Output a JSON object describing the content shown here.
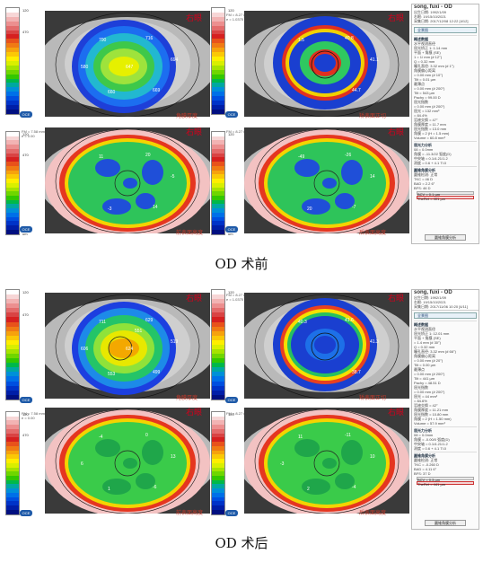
{
  "scale_values": [
    "120",
    "",
    "",
    "",
    "",
    "470",
    "",
    "",
    "",
    "",
    "",
    "",
    "",
    "",
    "",
    "",
    "",
    "",
    "",
    "",
    "",
    "",
    "",
    "",
    "um"
  ],
  "scale_values_mid": [
    "120",
    "",
    "",
    "",
    "",
    "",
    "",
    "",
    "",
    "",
    "",
    "",
    "",
    "",
    "",
    "",
    "",
    "",
    "",
    "",
    "",
    "",
    "",
    "",
    "um"
  ],
  "scale_header": [
    "FM = 7.58 mm (44.50D)",
    "e = 0.00"
  ],
  "scale_header_b": [
    "FM = 8.27 mm (40.80D)",
    "e = 1.0375"
  ],
  "before": {
    "maps": [
      {
        "eye": "右眼",
        "caption": "角膜厚度",
        "values": [
          "700",
          "716",
          "694",
          "669",
          "660",
          "580",
          "647"
        ]
      },
      {
        "eye": "右眼",
        "caption": "矫表面正切",
        "values": [
          "1.5",
          "40.8",
          "41.1",
          "44.7"
        ]
      },
      {
        "eye": "右眼",
        "caption": "前表面高度",
        "values": [
          "11",
          "20",
          "-5",
          "14",
          "-3"
        ]
      },
      {
        "eye": "右眼",
        "caption": "后表面高度",
        "values": [
          "-49",
          "-26",
          "14",
          "-7",
          "20"
        ]
      }
    ],
    "label": "OD 术前",
    "panel": {
      "name": "song, fuxi - OD",
      "lines": [
        "出生日期: 1992/1/09",
        "右眼: 19/15/10/2021",
        "采集日期: 2017/12/08 12:22 [4/12]"
      ],
      "tab": "全景图",
      "groups": [
        {
          "title": "概述数据",
          "rows": [
            "水平视测直径",
            "屈光矫正 1: 1.14 mm",
            "平面 + 角膜 (SE)",
            "1 = 1/ mm (# 12°)",
            "Q = 0.32 mm",
            "瞳孔直径: 3.32 mm (# 1°)",
            "角膜偏心距离",
            "= 0.00 mm (# 10°)",
            "Tilt = 0.01 µm",
            "最薄点",
            "= 0.00 mm (# 200°)",
            "Tilt = 543 µm",
            "Pachy = 99.00 D",
            "屈光指数",
            "= 0.00 mm (# 200°)",
            "屈光 = 132 mm³",
            "= 84.4%",
            "泪液交换 = 47°",
            "角膜厚度 = 11.7 mm",
            "屈光指数 = 13.0 mm",
            "角膜 = 2 (H = 1.5 mm)",
            "Volume = 60.8 mm³"
          ]
        },
        {
          "title": "屈光力分析",
          "rows": [
            "08 = 0.0mm",
            "角膜 = -11.3/22 弧度(D)",
            "中央轴 = 0.1/4.21/1.2",
            "测度 = 0.6 + 4.1 Tl.0"
          ]
        },
        {
          "title": "圆锥角膜分析",
          "rows": [
            "圆锥检测: 正常",
            "TKC = 46 D",
            "BAD = 2.2 6°",
            "BFS: 46 D"
          ]
        }
      ],
      "bars": [
        "BCV = 0.1 µm",
        "TheRet = 401 µm"
      ],
      "button": "圆锥角膜分析"
    }
  },
  "after": {
    "maps": [
      {
        "eye": "右眼",
        "caption": "角膜厚度",
        "values": [
          "711",
          "629",
          "519",
          "499",
          "553",
          "606",
          "624",
          "551"
        ]
      },
      {
        "eye": "右眼",
        "caption": "矫表面正切",
        "values": [
          "40.3",
          "41.6",
          "41.3",
          "38.7"
        ]
      },
      {
        "eye": "右眼",
        "caption": "前表面高度",
        "values": [
          "-4",
          "0",
          "13",
          "-6",
          "1",
          "6"
        ]
      },
      {
        "eye": "右眼",
        "caption": "后表面高度",
        "values": [
          "11",
          "-11",
          "10",
          "-4",
          "2",
          "-3"
        ]
      }
    ],
    "label": "OD 术后",
    "panel": {
      "name": "song, fuxi - OD",
      "lines": [
        "出生日期: 1992/1/09",
        "右眼: 19/15/10/2021",
        "采集日期: 2017/11/06 10:20 [4/11]"
      ],
      "tab": "全景图",
      "groups": [
        {
          "title": "概述数据",
          "rows": [
            "水平视测直径",
            "屈光矫正 1: 12.01 mm",
            "平面 + 角膜 (SE)",
            "= 1.4 mm (# 30°)",
            "Q = 0.32 mm",
            "瞳孔直径: 3.32 mm (# 66°)",
            "角膜偏心距离",
            "= 0.00 mm (# 20°)",
            "Tilt = 0.00 µm",
            "最薄点",
            "= 0.00 mm (# 200°)",
            "Tilt = 441 µm",
            "Pachy = 48.51 D",
            "屈光指数",
            "= 0.00 mm (# 200°)",
            "屈光 = 44 mm³",
            "= 84.6%",
            "泪液交换 = 42°",
            "角膜厚度 = 11.21 mm",
            "屈光指数 = 10.80 mm",
            "角膜 = 2 (H = 1.50 mm)",
            "Volume = 57.9 mm³"
          ]
        },
        {
          "title": "屈光力分析",
          "rows": [
            "08 = 0.0mm",
            "角膜 = -0.00/0 弧度(D)",
            "中央轴 = 0.1/4.21/1.2",
            "测度 = 0.6 + 4.1 Tl.0"
          ]
        },
        {
          "title": "圆锥角膜分析",
          "rows": [
            "圆锥检测: 正常",
            "TKC = -0.260 D",
            "BAD = 4.11 6°",
            "BFS: 37 D"
          ]
        }
      ],
      "bars": [
        "BCV = 0.3 µm",
        "TheRet = 441 µm"
      ],
      "button": "圆锥角膜分析"
    }
  },
  "colors": {
    "accent": "#d3001b"
  }
}
